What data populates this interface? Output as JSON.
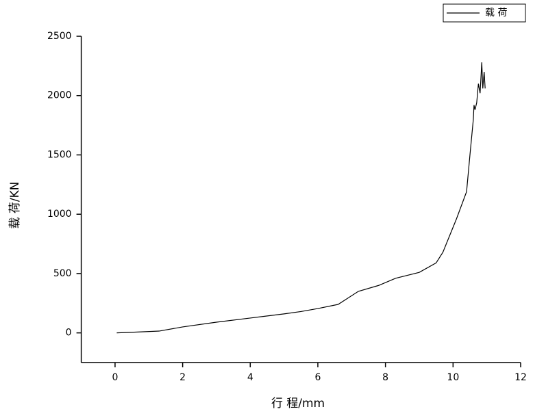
{
  "chart_data": {
    "type": "line",
    "x_label": "行 程/mm",
    "y_label": "载 荷/KN",
    "xlim": [
      -1,
      12
    ],
    "xticks": [
      0,
      2,
      4,
      6,
      8,
      10,
      12
    ],
    "ylim": [
      -250,
      2500
    ],
    "yticks": [
      0,
      500,
      1000,
      1500,
      2000,
      2500
    ],
    "legend": "upper right",
    "series": [
      {
        "name": "载 荷",
        "color": "#000000",
        "x": [
          0.05,
          0.5,
          1.3,
          2,
          3,
          4,
          5,
          5.5,
          6,
          6.6,
          7.2,
          7.8,
          8.3,
          9,
          9.5,
          9.7,
          9.9,
          10.1,
          10.4,
          10.5,
          10.6,
          10.62,
          10.65,
          10.7,
          10.75,
          10.8,
          10.85,
          10.88,
          10.92,
          10.95
        ],
        "values": [
          0,
          5,
          15,
          50,
          90,
          125,
          160,
          180,
          205,
          240,
          350,
          400,
          460,
          510,
          590,
          680,
          820,
          960,
          1190,
          1500,
          1800,
          1920,
          1880,
          1940,
          2100,
          2020,
          2280,
          2060,
          2200,
          2060
        ]
      }
    ]
  }
}
